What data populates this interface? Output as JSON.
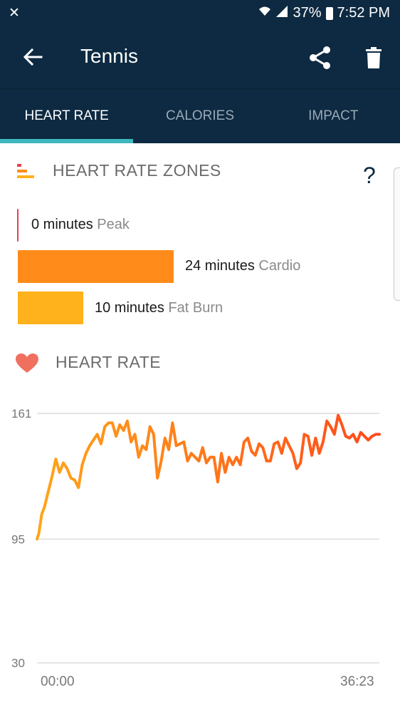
{
  "status_bar": {
    "left_icon": "notification-off-icon",
    "battery": "37%",
    "time": "7:52 PM"
  },
  "app_bar": {
    "title": "Tennis",
    "back_icon": "back-arrow-icon",
    "share_icon": "share-icon",
    "delete_icon": "trash-icon"
  },
  "tabs": [
    {
      "label": "HEART RATE",
      "active": true
    },
    {
      "label": "CALORIES",
      "active": false
    },
    {
      "label": "IMPACT",
      "active": false
    }
  ],
  "zones": {
    "title": "HEART RATE ZONES",
    "help": "?",
    "items": [
      {
        "value": "0 minutes",
        "name": "Peak",
        "minutes": 0,
        "color": "#e8414d"
      },
      {
        "value": "24 minutes",
        "name": "Cardio",
        "minutes": 24,
        "color": "#ff8c1a"
      },
      {
        "value": "10 minutes",
        "name": "Fat Burn",
        "minutes": 10,
        "color": "#ffb21c"
      }
    ]
  },
  "heart_rate": {
    "title": "HEART RATE"
  },
  "chart_data": {
    "type": "line",
    "title": "",
    "xlabel": "",
    "ylabel": "",
    "x_ticks": [
      "00:00",
      "36:23"
    ],
    "y_ticks": [
      161,
      95,
      30
    ],
    "ylim": [
      30,
      161
    ],
    "x_start_minutes": 0,
    "x_end_minutes": 36.38,
    "grid": true,
    "line_color_start": "#ffa51a",
    "line_color_end": "#ff4a1a",
    "series": [
      {
        "x": [
          0,
          0.2,
          0.5,
          0.8,
          1.2,
          1.6,
          2.0,
          2.4,
          2.8,
          3.2,
          3.6,
          4.0,
          4.4,
          4.8,
          5.2,
          5.6,
          6.0,
          6.4,
          6.8,
          7.2,
          7.6,
          8.0,
          8.4,
          8.8,
          9.2,
          9.6,
          10.0,
          10.4,
          10.8,
          11.2,
          11.6,
          12.0,
          12.4,
          12.8,
          13.2,
          13.6,
          14.0,
          14.4,
          14.8,
          15.2,
          15.6,
          16.0,
          16.4,
          16.8,
          17.2,
          17.6,
          18.0,
          18.4,
          18.8,
          19.2,
          19.6,
          20.0,
          20.4,
          20.8,
          21.2,
          21.6,
          22.0,
          22.4,
          22.8,
          23.2,
          23.6,
          24.0,
          24.4,
          24.8,
          25.2,
          25.6,
          26.0,
          26.4,
          26.8,
          27.2,
          27.6,
          28.0,
          28.4,
          28.8,
          29.2,
          29.6,
          30.0,
          30.4,
          30.8,
          31.2,
          31.6,
          32.0,
          32.4,
          32.8,
          33.2,
          33.6,
          34.0,
          34.4,
          34.8,
          35.2,
          35.6,
          36.0,
          36.38
        ],
        "y": [
          95,
          98,
          108,
          112,
          120,
          128,
          137,
          130,
          135,
          132,
          127,
          126,
          122,
          134,
          140,
          144,
          147,
          150,
          145,
          154,
          156,
          156,
          149,
          155,
          152,
          157,
          146,
          150,
          138,
          144,
          142,
          154,
          150,
          127,
          136,
          148,
          142,
          156,
          144,
          145,
          146,
          136,
          140,
          138,
          136,
          143,
          135,
          138,
          138,
          125,
          140,
          130,
          138,
          134,
          138,
          134,
          146,
          148,
          141,
          139,
          145,
          143,
          136,
          136,
          145,
          146,
          140,
          148,
          144,
          140,
          132,
          135,
          150,
          149,
          139,
          148,
          140,
          146,
          157,
          154,
          150,
          160,
          155,
          149,
          148,
          150,
          146,
          151,
          149,
          147,
          149,
          150,
          150
        ]
      }
    ]
  }
}
